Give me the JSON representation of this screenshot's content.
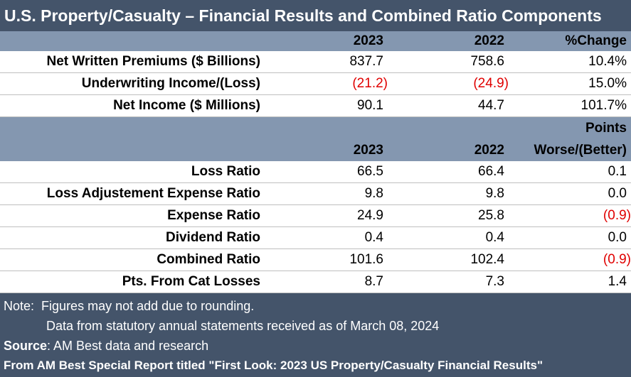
{
  "title": "U.S. Property/Casualty – Financial Results and Combined Ratio Components",
  "table1": {
    "header": [
      "2023",
      "2022",
      "%Change"
    ],
    "rows": [
      [
        "Net Written Premiums ($ Billions)",
        "837.7",
        "758.6",
        "10.4%"
      ],
      [
        "Underwriting Income/(Loss)",
        "(21.2)",
        "(24.9)",
        "15.0%"
      ],
      [
        "Net Income ($ Millions)",
        "90.1",
        "44.7",
        "101.7%"
      ]
    ]
  },
  "table2": {
    "header_top": "Points",
    "header": [
      "2023",
      "2022",
      "Worse/(Better)"
    ],
    "rows": [
      [
        "Loss Ratio",
        "66.5",
        "66.4",
        "0.1"
      ],
      [
        "Loss Adjustement Expense Ratio",
        "9.8",
        "9.8",
        "0.0"
      ],
      [
        "Expense Ratio",
        "24.9",
        "25.8",
        "(0.9)"
      ],
      [
        "Dividend Ratio",
        "0.4",
        "0.4",
        "0.0"
      ],
      [
        "Combined Ratio",
        "101.6",
        "102.4",
        "(0.9)"
      ],
      [
        "Pts. From Cat Losses",
        "8.7",
        "7.3",
        "1.4"
      ]
    ]
  },
  "footer": {
    "note_label": "Note:",
    "notes": [
      "Figures may not add due to rounding.",
      "Data from statutory annual statements received as of March 08, 2024"
    ],
    "source_label": "Source",
    "source_text": ": AM Best data and research",
    "report": "From AM Best Special Report titled \"First Look: 2023 US Property/Casualty Financial Results\""
  }
}
